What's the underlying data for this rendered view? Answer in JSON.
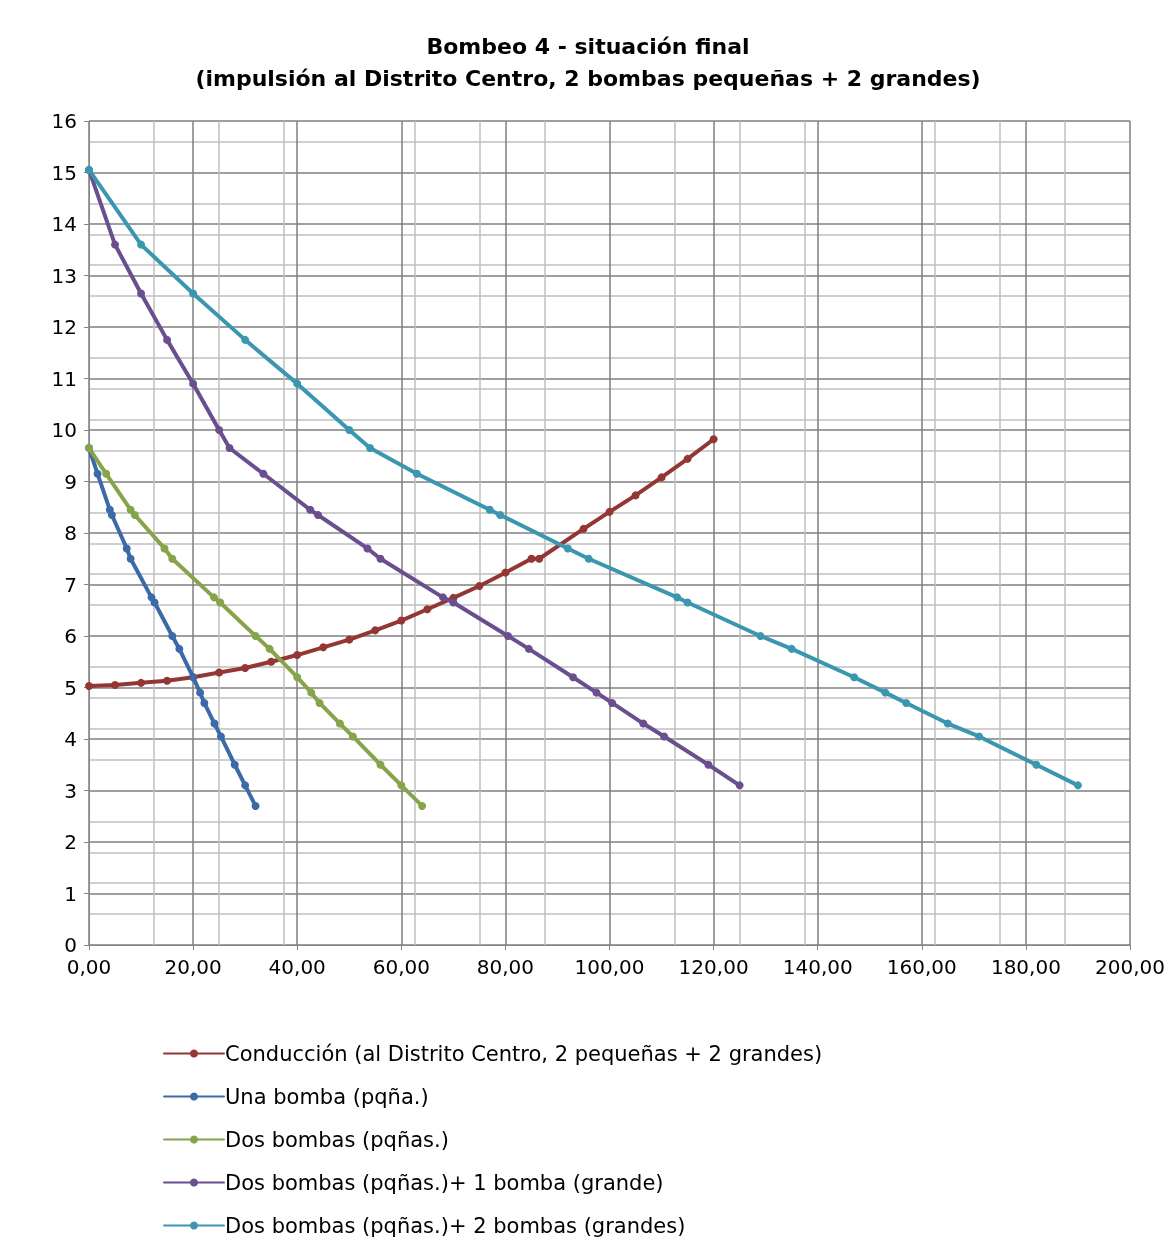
{
  "chart_data": {
    "type": "line",
    "title": "Bombeo 4 - situación final",
    "subtitle": "(impulsión al Distrito Centro, 2 bombas pequeñas + 2 grandes)",
    "xlim": [
      0,
      200
    ],
    "ylim": [
      0,
      16
    ],
    "xticks": [
      {
        "value": 0,
        "label": "0,00"
      },
      {
        "value": 20,
        "label": "20,00"
      },
      {
        "value": 40,
        "label": "40,00"
      },
      {
        "value": 60,
        "label": "60,00"
      },
      {
        "value": 80,
        "label": "80,00"
      },
      {
        "value": 100,
        "label": "100,00"
      },
      {
        "value": 120,
        "label": "120,00"
      },
      {
        "value": 140,
        "label": "140,00"
      },
      {
        "value": 160,
        "label": "160,00"
      },
      {
        "value": 180,
        "label": "180,00"
      },
      {
        "value": 200,
        "label": "200,00"
      }
    ],
    "yticks": [
      0,
      1,
      2,
      3,
      4,
      5,
      6,
      7,
      8,
      9,
      10,
      11,
      12,
      13,
      14,
      15,
      16
    ],
    "grid": true,
    "legend": "bottom",
    "marker": "circle",
    "line_style": "solid",
    "series": [
      {
        "name": "Conducción (al Distrito Centro, 2 pequeñas + 2 grandes)",
        "color": "#943634",
        "x": [
          0,
          5,
          10,
          15,
          20,
          25,
          30,
          35,
          40,
          45,
          50,
          55,
          60,
          65,
          70,
          75,
          80,
          85,
          86.5,
          95,
          100,
          105,
          110,
          115,
          120
        ],
        "values": [
          5.03,
          5.05,
          5.09,
          5.13,
          5.2,
          5.29,
          5.38,
          5.5,
          5.63,
          5.78,
          5.93,
          6.11,
          6.3,
          6.52,
          6.74,
          6.97,
          7.23,
          7.5,
          7.5,
          8.08,
          8.41,
          8.73,
          9.08,
          9.44,
          9.82
        ]
      },
      {
        "name": "Una bomba (pqña.)",
        "color": "#3c6aa8",
        "x": [
          0,
          1.65,
          4,
          4.4,
          7.25,
          8,
          12,
          12.6,
          16,
          17.35,
          20,
          21.35,
          22.15,
          24.1,
          25.35,
          28,
          30,
          32
        ],
        "values": [
          9.65,
          9.15,
          8.45,
          8.35,
          7.7,
          7.5,
          6.75,
          6.65,
          6.0,
          5.75,
          5.2,
          4.9,
          4.7,
          4.3,
          4.05,
          3.5,
          3.1,
          2.7
        ]
      },
      {
        "name": "Dos bombas (pqñas.)",
        "color": "#86a44a",
        "x": [
          0,
          3.3,
          8,
          8.8,
          14.5,
          16,
          24,
          25.2,
          32,
          34.7,
          40,
          42.7,
          44.3,
          48.2,
          50.7,
          56,
          60,
          64
        ],
        "values": [
          9.65,
          9.15,
          8.45,
          8.35,
          7.7,
          7.5,
          6.75,
          6.65,
          6.0,
          5.75,
          5.2,
          4.9,
          4.7,
          4.3,
          4.05,
          3.5,
          3.1,
          2.7
        ]
      },
      {
        "name": "Dos bombas (pqñas.)+ 1 bomba (grande)",
        "color": "#6a4f8f",
        "x": [
          0,
          5,
          10,
          15,
          20,
          25,
          27,
          33.5,
          42.5,
          44,
          53.5,
          56,
          68,
          70,
          80.5,
          84.5,
          93,
          97.5,
          100.5,
          106.5,
          110.5,
          119,
          125
        ],
        "values": [
          15.05,
          13.6,
          12.65,
          11.75,
          10.9,
          10.0,
          9.65,
          9.15,
          8.45,
          8.35,
          7.7,
          7.5,
          6.75,
          6.65,
          6.0,
          5.75,
          5.2,
          4.9,
          4.7,
          4.3,
          4.05,
          3.5,
          3.1
        ]
      },
      {
        "name": "Dos bombas (pqñas.)+ 2 bombas (grandes)",
        "color": "#3b96b0",
        "x": [
          0,
          10,
          20,
          30,
          40,
          50,
          54,
          63,
          77,
          79,
          92,
          96,
          113,
          115,
          129,
          135,
          147,
          153,
          157,
          165,
          171,
          182,
          190
        ],
        "values": [
          15.05,
          13.6,
          12.65,
          11.75,
          10.9,
          10.0,
          9.65,
          9.15,
          8.45,
          8.35,
          7.7,
          7.5,
          6.75,
          6.65,
          6.0,
          5.75,
          5.2,
          4.9,
          4.7,
          4.3,
          4.05,
          3.5,
          3.1
        ]
      }
    ]
  }
}
